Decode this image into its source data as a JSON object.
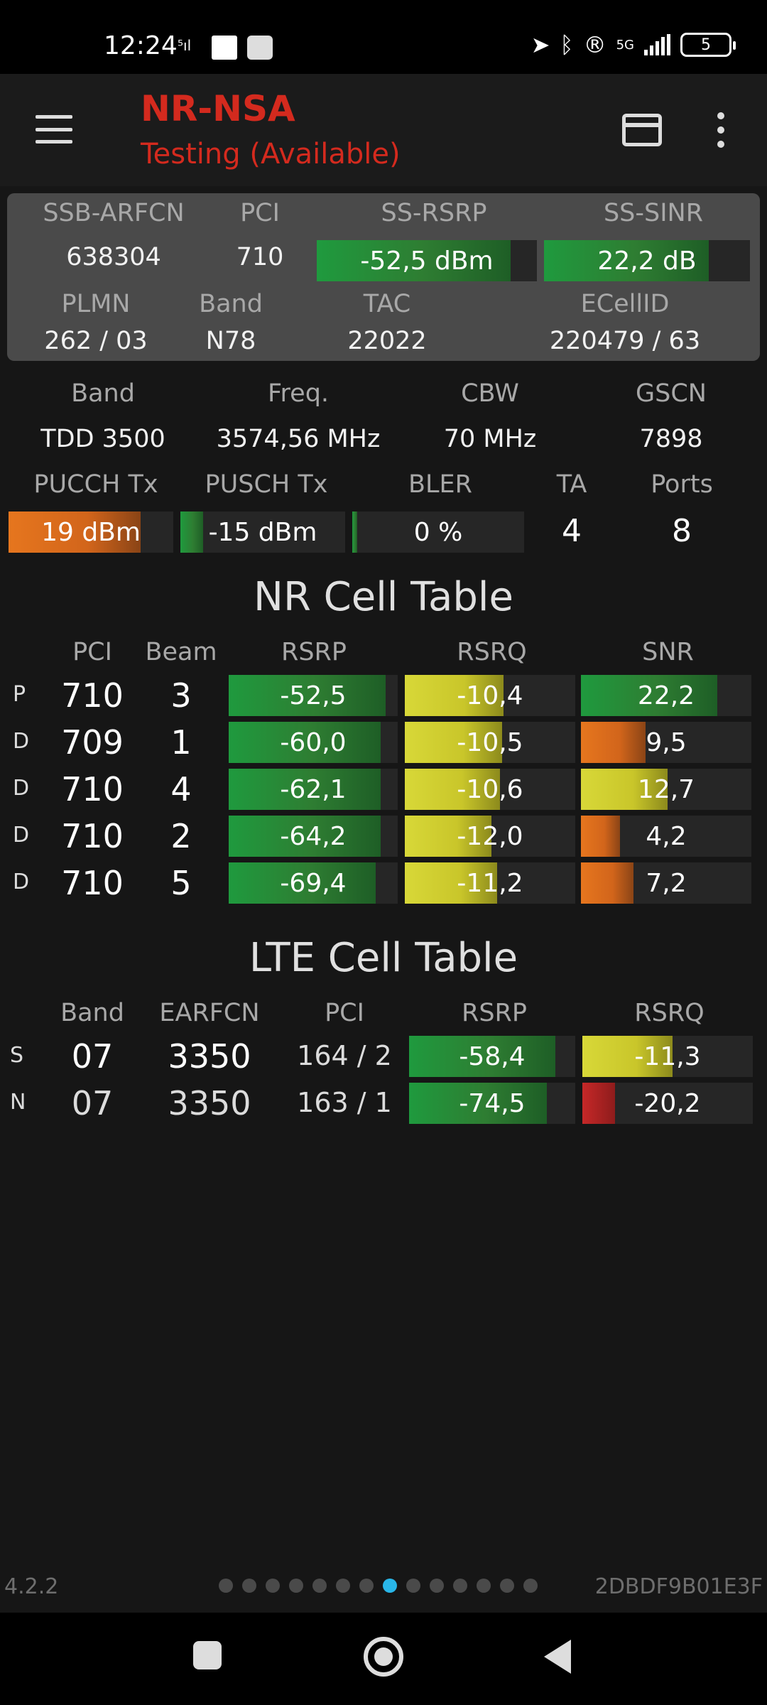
{
  "status_bar": {
    "time": "12:24",
    "network": "5G",
    "battery": "5"
  },
  "app_bar": {
    "title": "NR-NSA",
    "subtitle": "Testing (Available)",
    "menu_icon": "hamburger-icon",
    "card_icon": "card-icon",
    "more_icon": "more-vert-icon"
  },
  "summary": {
    "headers": [
      "SSB-ARFCN",
      "PCI",
      "SS-RSRP",
      "SS-SINR"
    ],
    "ssb_arfcn": "638304",
    "pci": "710",
    "ss_rsrp": {
      "text": "-52,5 dBm",
      "level": 0.88
    },
    "ss_sinr": {
      "text": "22,2 dB",
      "level": 0.8
    },
    "headers2": [
      "PLMN",
      "Band",
      "TAC",
      "ECellID"
    ],
    "plmn": "262 / 03",
    "band": "N78",
    "tac": "22022",
    "ecellid": "220479 / 63"
  },
  "details": {
    "headers": [
      "Band",
      "Freq.",
      "CBW",
      "GSCN"
    ],
    "band": "TDD 3500",
    "freq": "3574,56 MHz",
    "cbw": "70 MHz",
    "gscn": "7898",
    "headers2": [
      "PUCCH Tx",
      "PUSCH Tx",
      "BLER",
      "TA",
      "Ports"
    ],
    "pucch": {
      "text": "19 dBm",
      "level": 0.8
    },
    "pusch": {
      "text": "-15 dBm",
      "level": 0.14
    },
    "bler": {
      "text": "0 %",
      "level": 0.03
    },
    "ta": "4",
    "ports": "8"
  },
  "nr_table": {
    "title": "NR Cell Table",
    "headers": [
      "PCI",
      "Beam",
      "RSRP",
      "RSRQ",
      "SNR"
    ],
    "rows": [
      {
        "tag": "P",
        "pci": "710",
        "beam": "3",
        "rsrp": "-52,5",
        "rsrp_level": 0.93,
        "rsrq": "-10,4",
        "rsrq_level": 0.58,
        "snr": "22,2",
        "snr_level": 0.8,
        "snr_color": "g"
      },
      {
        "tag": "D",
        "pci": "709",
        "beam": "1",
        "rsrp": "-60,0",
        "rsrp_level": 0.9,
        "rsrq": "-10,5",
        "rsrq_level": 0.57,
        "snr": "9,5",
        "snr_level": 0.38,
        "snr_color": "o"
      },
      {
        "tag": "D",
        "pci": "710",
        "beam": "4",
        "rsrp": "-62,1",
        "rsrp_level": 0.9,
        "rsrq": "-10,6",
        "rsrq_level": 0.56,
        "snr": "12,7",
        "snr_level": 0.51,
        "snr_color": "y"
      },
      {
        "tag": "D",
        "pci": "710",
        "beam": "2",
        "rsrp": "-64,2",
        "rsrp_level": 0.9,
        "rsrq": "-12,0",
        "rsrq_level": 0.51,
        "snr": "4,2",
        "snr_level": 0.23,
        "snr_color": "o"
      },
      {
        "tag": "D",
        "pci": "710",
        "beam": "5",
        "rsrp": "-69,4",
        "rsrp_level": 0.87,
        "rsrq": "-11,2",
        "rsrq_level": 0.54,
        "snr": "7,2",
        "snr_level": 0.31,
        "snr_color": "o"
      }
    ]
  },
  "lte_table": {
    "title": "LTE Cell Table",
    "headers": [
      "Band",
      "EARFCN",
      "PCI",
      "RSRP",
      "RSRQ"
    ],
    "rows": [
      {
        "tag": "S",
        "band": "07",
        "earfcn": "3350",
        "pci": "164 / 2",
        "rsrp": "-58,4",
        "rsrp_level": 0.88,
        "rsrq": "-11,3",
        "rsrq_level": 0.53,
        "rsrq_color": "y"
      },
      {
        "tag": "N",
        "band": "07",
        "earfcn": "3350",
        "pci": "163 / 1",
        "rsrp": "-74,5",
        "rsrp_level": 0.83,
        "rsrq": "-20,2",
        "rsrq_level": 0.19,
        "rsrq_color": "r"
      }
    ]
  },
  "footer": {
    "version": "4.2.2",
    "device_id": "2DBDF9B01E3F",
    "page_count": 14,
    "active_page": 7
  }
}
